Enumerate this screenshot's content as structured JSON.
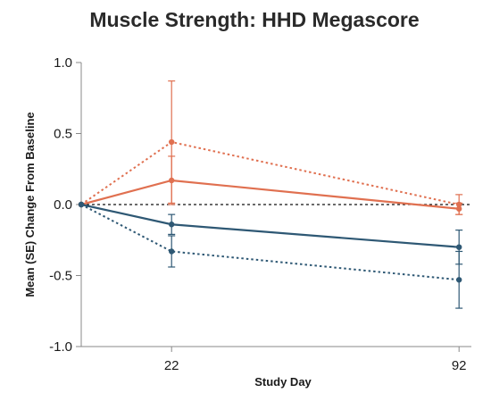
{
  "chart_data": {
    "type": "line",
    "title": "Muscle Strength: HHD Megascore",
    "xlabel": "Study Day",
    "ylabel": "Mean (SE) Change From Baseline",
    "x": [
      0,
      22,
      92
    ],
    "x_tick_labels": [
      "22",
      "92"
    ],
    "x_tick_values": [
      22,
      92
    ],
    "xlim": [
      0,
      95
    ],
    "ylim": [
      -1.0,
      1.0
    ],
    "y_ticks": [
      1.0,
      0.5,
      0.0,
      -0.5,
      -1.0
    ],
    "y_tick_labels": [
      "1.0",
      "0.5",
      "0.0",
      "-0.5",
      "-1.0"
    ],
    "reference_line": 0.0,
    "grid": false,
    "series": [
      {
        "values": [
          0.0,
          0.44,
          0.0
        ],
        "se": [
          0.0,
          0.43,
          0.07
        ],
        "color": "#e07050",
        "dash": "dotted"
      },
      {
        "values": [
          0.0,
          0.17,
          -0.03
        ],
        "se": [
          0.0,
          0.17,
          0.04
        ],
        "color": "#e07050",
        "dash": "solid"
      },
      {
        "values": [
          0.0,
          -0.14,
          -0.3
        ],
        "se": [
          0.0,
          0.07,
          0.12
        ],
        "color": "#2e5874",
        "dash": "solid"
      },
      {
        "values": [
          0.0,
          -0.33,
          -0.53
        ],
        "se": [
          0.0,
          0.11,
          0.2
        ],
        "color": "#2e5874",
        "dash": "dotted"
      }
    ]
  }
}
